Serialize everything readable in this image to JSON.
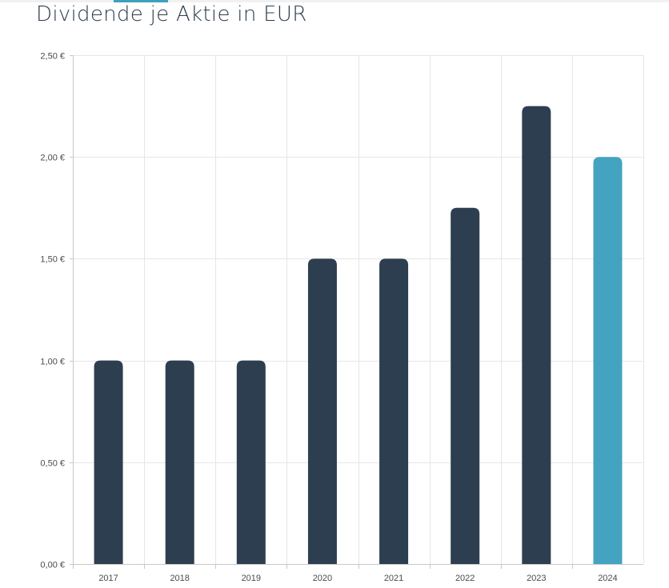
{
  "title": "Dividende je Aktie in EUR",
  "colors": {
    "bar": "#2d3e50",
    "bar_highlight": "#43a3c0",
    "grid": "#e6e6e6",
    "axis": "#c8c8c8",
    "tick_text": "#4a4a4a",
    "title": "#2d3c4b",
    "accent": "#3ea0bc"
  },
  "chart_data": {
    "type": "bar",
    "title": "Dividende je Aktie in EUR",
    "xlabel": "",
    "ylabel": "",
    "categories": [
      "2017",
      "2018",
      "2019",
      "2020",
      "2021",
      "2022",
      "2023",
      "2024"
    ],
    "values": [
      1.0,
      1.0,
      1.0,
      1.5,
      1.5,
      1.75,
      2.25,
      2.0
    ],
    "highlight_index": 7,
    "ylim": [
      0,
      2.5
    ],
    "yticks": [
      0,
      0.5,
      1.0,
      1.5,
      2.0,
      2.5
    ],
    "ytick_labels": [
      "0,00 €",
      "0,50 €",
      "1,00 €",
      "1,50 €",
      "2,00 €",
      "2,50 €"
    ],
    "grid": true,
    "legend": "none"
  }
}
